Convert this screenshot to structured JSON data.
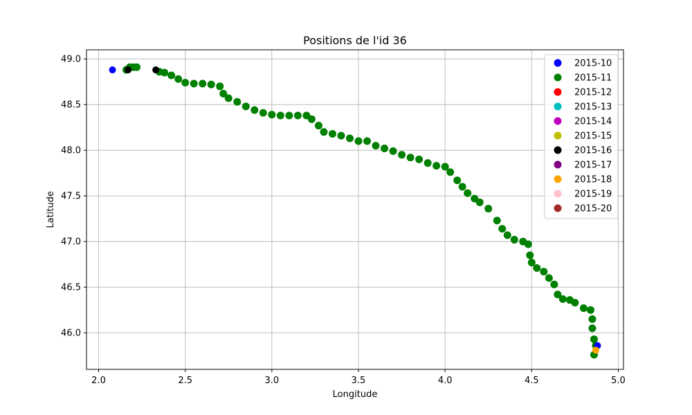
{
  "chart_data": {
    "type": "scatter",
    "title": "Positions de l'id 36",
    "xlabel": "Longitude",
    "ylabel": "Latitude",
    "xlim": [
      1.93,
      5.03
    ],
    "ylim": [
      45.6,
      49.1
    ],
    "xticks": [
      "2.0",
      "2.5",
      "3.0",
      "3.5",
      "4.0",
      "4.5",
      "5.0"
    ],
    "yticks": [
      "46.0",
      "46.5",
      "47.0",
      "47.5",
      "48.0",
      "48.5",
      "49.0"
    ],
    "xtick_values": [
      2.0,
      2.5,
      3.0,
      3.5,
      4.0,
      4.5,
      5.0
    ],
    "ytick_values": [
      46.0,
      46.5,
      47.0,
      47.5,
      48.0,
      48.5,
      49.0
    ],
    "grid": true,
    "legend_position": "top-right",
    "series": [
      {
        "name": "2015-10",
        "color": "#0000ff",
        "points": [
          [
            2.08,
            48.88
          ],
          [
            4.88,
            45.86
          ]
        ]
      },
      {
        "name": "2015-11",
        "color": "#008000",
        "points": [
          [
            2.16,
            48.88
          ],
          [
            2.18,
            48.91
          ],
          [
            2.2,
            48.91
          ],
          [
            2.22,
            48.91
          ],
          [
            2.35,
            48.86
          ],
          [
            2.38,
            48.85
          ],
          [
            2.42,
            48.82
          ],
          [
            2.46,
            48.78
          ],
          [
            2.5,
            48.74
          ],
          [
            2.55,
            48.73
          ],
          [
            2.6,
            48.73
          ],
          [
            2.65,
            48.72
          ],
          [
            2.7,
            48.7
          ],
          [
            2.72,
            48.62
          ],
          [
            2.75,
            48.57
          ],
          [
            2.8,
            48.53
          ],
          [
            2.85,
            48.48
          ],
          [
            2.9,
            48.44
          ],
          [
            2.95,
            48.41
          ],
          [
            3.0,
            48.39
          ],
          [
            3.05,
            48.38
          ],
          [
            3.1,
            48.38
          ],
          [
            3.15,
            48.38
          ],
          [
            3.2,
            48.38
          ],
          [
            3.23,
            48.34
          ],
          [
            3.27,
            48.27
          ],
          [
            3.3,
            48.2
          ],
          [
            3.35,
            48.18
          ],
          [
            3.4,
            48.16
          ],
          [
            3.45,
            48.13
          ],
          [
            3.5,
            48.1
          ],
          [
            3.55,
            48.1
          ],
          [
            3.6,
            48.05
          ],
          [
            3.65,
            48.02
          ],
          [
            3.7,
            47.99
          ],
          [
            3.75,
            47.95
          ],
          [
            3.8,
            47.92
          ],
          [
            3.85,
            47.9
          ],
          [
            3.9,
            47.86
          ],
          [
            3.95,
            47.83
          ],
          [
            4.0,
            47.82
          ],
          [
            4.03,
            47.76
          ],
          [
            4.07,
            47.67
          ],
          [
            4.1,
            47.6
          ],
          [
            4.13,
            47.53
          ],
          [
            4.17,
            47.47
          ],
          [
            4.2,
            47.43
          ],
          [
            4.25,
            47.36
          ],
          [
            4.3,
            47.23
          ],
          [
            4.33,
            47.14
          ],
          [
            4.36,
            47.07
          ],
          [
            4.4,
            47.02
          ],
          [
            4.45,
            47.0
          ],
          [
            4.48,
            46.97
          ],
          [
            4.49,
            46.85
          ],
          [
            4.5,
            46.77
          ],
          [
            4.53,
            46.71
          ],
          [
            4.57,
            46.67
          ],
          [
            4.6,
            46.6
          ],
          [
            4.63,
            46.53
          ],
          [
            4.65,
            46.42
          ],
          [
            4.68,
            46.37
          ],
          [
            4.72,
            46.36
          ],
          [
            4.75,
            46.33
          ],
          [
            4.8,
            46.27
          ],
          [
            4.84,
            46.25
          ],
          [
            4.85,
            46.15
          ],
          [
            4.85,
            46.05
          ],
          [
            4.86,
            45.93
          ],
          [
            4.87,
            45.86
          ],
          [
            4.86,
            45.76
          ]
        ]
      },
      {
        "name": "2015-12",
        "color": "#ff0000",
        "points": []
      },
      {
        "name": "2015-13",
        "color": "#00bfbf",
        "points": []
      },
      {
        "name": "2015-14",
        "color": "#bf00bf",
        "points": []
      },
      {
        "name": "2015-15",
        "color": "#bfbf00",
        "points": []
      },
      {
        "name": "2015-16",
        "color": "#000000",
        "points": [
          [
            2.17,
            48.88
          ],
          [
            2.33,
            48.88
          ]
        ]
      },
      {
        "name": "2015-17",
        "color": "#800080",
        "points": []
      },
      {
        "name": "2015-18",
        "color": "#ffa500",
        "points": [
          [
            4.87,
            45.81
          ]
        ]
      },
      {
        "name": "2015-19",
        "color": "#ffc0cb",
        "points": []
      },
      {
        "name": "2015-20",
        "color": "#a52a2a",
        "points": []
      }
    ]
  }
}
